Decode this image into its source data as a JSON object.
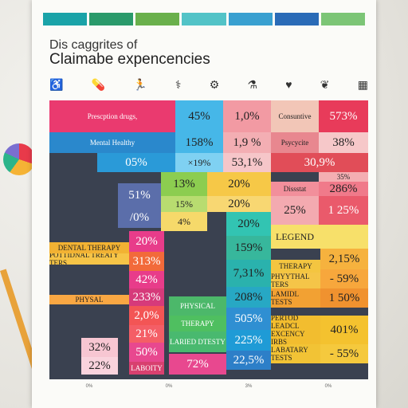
{
  "tabs": [
    {
      "label": "",
      "color": "#1aa3a8"
    },
    {
      "label": "",
      "color": "#2a9a6b"
    },
    {
      "label": "",
      "color": "#6ab04c"
    },
    {
      "label": "",
      "color": "#52c3c7"
    },
    {
      "label": "",
      "color": "#39a0d0"
    },
    {
      "label": "",
      "color": "#2a6bb7"
    },
    {
      "label": "",
      "color": "#7cc576"
    }
  ],
  "title_line1": "Dis caggrites of",
  "title_line2": "Claimabe expencencies",
  "legend_title": "LEGEND",
  "cells": {
    "prescription_drugs": "Prescption drugs,",
    "mental_health": "Mental Healthy",
    "v_45": "45%",
    "v_10": "1,0%",
    "v_573": "573%",
    "v_158": "158%",
    "v_19": "1,9 %",
    "v_38": "38%",
    "v_05": "05%",
    "v_x19": "×19%",
    "v_531": "53,1%",
    "v_309": "30,9%",
    "v_35": "35%",
    "v_13": "13%",
    "v_20a": "20%",
    "v_286": "286%",
    "v_51": "51%",
    "v_15": "15%",
    "v_20b": "20%",
    "v_0": "/0%",
    "v_4": "4%",
    "v_25": "25%",
    "v_125": "1 25%",
    "v_20c": "20%",
    "v_159": "159%",
    "v_20d": "20%",
    "v_313": "313%",
    "v_731": "7,31%",
    "v_215": "2,15%",
    "v_42": "42%",
    "v_208": "208%",
    "v_59": "- 59%",
    "v_233": "233%",
    "v_505": "505%",
    "v_150": "1 50%",
    "v_20e": "2,0%",
    "v_225a": "225%",
    "v_21": "21%",
    "v_401": "401%",
    "v_50": "50%",
    "v_225b": "22,5%",
    "v_32": "32%",
    "v_72": "72%",
    "v_22": "22%",
    "v_55": "- 55%",
    "physical": "PHYSICAL",
    "therapy": "THERAPY",
    "physical_ters": "PHYYTHAL TERS",
    "lamidl_tests": "LAMIDL TESTS",
    "pertod": "PERTOD LEADCL EXCENCY IRBS",
    "labatary": "LABATARY TESTS",
    "laried": "LARIED DTESTY",
    "laboity": "LABOITY",
    "pertional": "POTTIDNAL TREATY TERS",
    "dental": "DENTAL THERAPY",
    "thersay": "THERAPY",
    "physal": "PHYSAL",
    "contage": "Consuntive",
    "pscycite": "Psycycite",
    "dissatat": "Dissstat"
  },
  "footer": [
    "0%",
    "0%",
    "3%",
    "0%"
  ]
}
